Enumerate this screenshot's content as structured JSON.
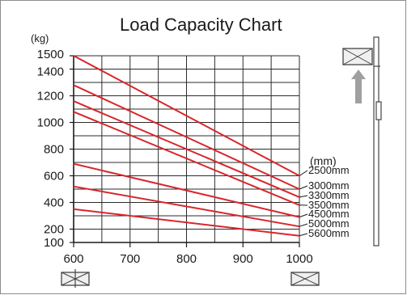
{
  "chart_data": {
    "type": "line",
    "title": "Load Capacity Chart",
    "ylabel": "(kg)",
    "xlabel": "",
    "series_units_label": "(mm)",
    "xlim": [
      600,
      1000
    ],
    "ylim": [
      100,
      1500
    ],
    "x_ticks": [
      600,
      700,
      800,
      900,
      1000
    ],
    "y_ticks": [
      100,
      200,
      400,
      600,
      800,
      1000,
      1200,
      1400,
      1500
    ],
    "grid": true,
    "line_color": "#d9262b",
    "series": [
      {
        "name": "2500mm",
        "x": [
          600,
          1000
        ],
        "y": [
          1500,
          600
        ]
      },
      {
        "name": "3000mm",
        "x": [
          600,
          1000
        ],
        "y": [
          1280,
          500
        ]
      },
      {
        "name": "3300mm",
        "x": [
          600,
          1000
        ],
        "y": [
          1160,
          440
        ]
      },
      {
        "name": "3500mm",
        "x": [
          600,
          1000
        ],
        "y": [
          1080,
          380
        ]
      },
      {
        "name": "4500mm",
        "x": [
          600,
          1000
        ],
        "y": [
          690,
          290
        ]
      },
      {
        "name": "5000mm",
        "x": [
          600,
          1000
        ],
        "y": [
          520,
          220
        ]
      },
      {
        "name": "5600mm",
        "x": [
          600,
          1000
        ],
        "y": [
          350,
          150
        ]
      }
    ]
  }
}
